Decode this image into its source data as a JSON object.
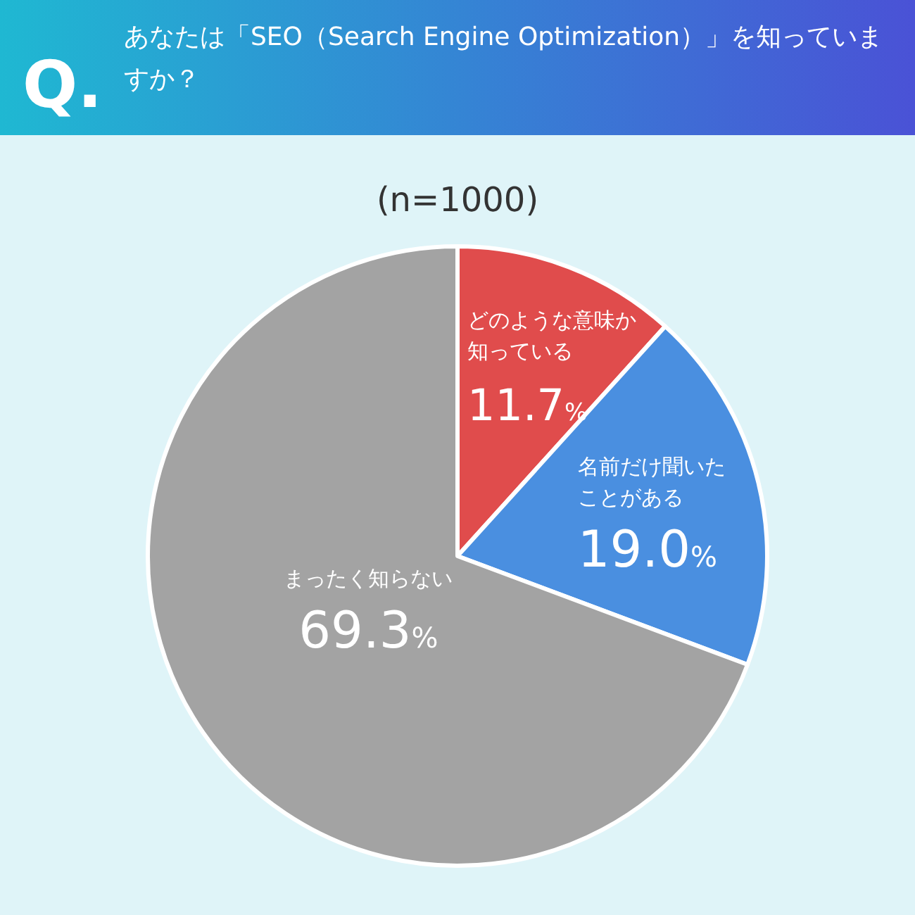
{
  "chart_data": {
    "type": "pie",
    "title": "あなたは「SEO（Search Engine Optimization）」を知っていますか？",
    "subtitle": "(n=1000)",
    "annotations": [
      "Q."
    ],
    "categories": [
      "どのような意味か知っている",
      "名前だけ聞いたことがある",
      "まったく知らない"
    ],
    "values": [
      11.7,
      19.0,
      69.3
    ],
    "value_labels": [
      "11.7%",
      "19.0%",
      "69.3%"
    ],
    "colors": [
      "#e04c4c",
      "#4a8fe0",
      "#a3a3a3"
    ],
    "legend": false
  }
}
